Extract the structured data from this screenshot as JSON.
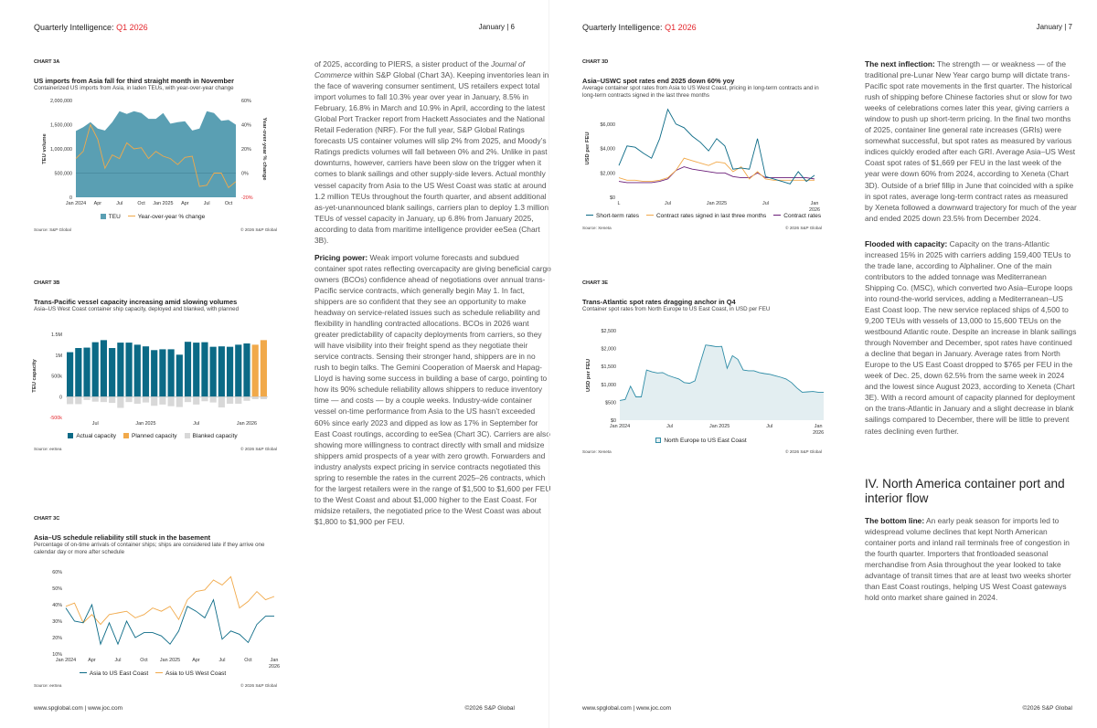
{
  "header": {
    "publication": "Quarterly Intelligence:",
    "issue": "Q1 2026",
    "left_page": "January  |  6",
    "right_page": "January  |  7"
  },
  "footer": {
    "links": "www.spglobal.com  |  www.joc.com",
    "copyright": "©2026 S&P Global"
  },
  "left_text": {
    "p1_a": "of 2025, according to PIERS, a sister product of the ",
    "p1_ital": "Journal of Commerce",
    "p1_b": " within S&P Global (Chart 3A). Keeping inventories lean in the face of wavering consumer sentiment, US retailers expect total import volumes to fall 10.3% year over year in January, 8.5% in February, 16.8% in March and 10.9% in April, according to the latest Global Port Tracker report from Hackett Associates and the National Retail Federation (NRF). For the full year, S&P Global Ratings forecasts US container volumes will slip 2% from 2025, and Moody’s Ratings predicts volumes will fall between 0% and 2%. Unlike in past downturns, however, carriers have been slow on the trigger when it comes to blank sailings and other supply-side levers. Actual monthly vessel capacity from Asia to the US West Coast was static at around 1.2 million TEUs throughout the fourth quarter, and absent additional as-yet-unannounced blank sailings, carriers plan to deploy 1.3 million TEUs of vessel capacity in January, up 6.8% from January 2025, according to data from maritime intelligence provider eeSea (Chart 3B).",
    "p2_lead": "Pricing power:",
    "p2": " Weak import volume forecasts and subdued container spot rates reflecting overcapacity are giving beneficial cargo owners (BCOs) confidence ahead of negotiations over annual trans-Pacific service contracts, which generally begin May 1. In fact, shippers are so confident that they see an opportunity to make headway on service-related issues such as schedule reliability and flexibility in handling contracted allocations. BCOs in 2026 want greater predictability of capacity deployments from carriers, so they will have visibility into their freight spend as they negotiate their service contracts. Sensing their stronger hand, shippers are in no rush to begin talks. The Gemini Cooperation of Maersk and Hapag-Lloyd is having some success in building a base of cargo, pointing to how its 90% schedule reliability allows shippers to reduce inventory time — and costs — by a couple weeks. Industry-wide container vessel on-time performance from Asia to the US hasn’t exceeded 60% since early 2023 and dipped as low as 17% in September for East Coast routings, according to eeSea (Chart 3C). Carriers are also showing more willingness to contract directly with small and midsize shippers amid prospects of a year with zero growth. Forwarders and industry analysts expect pricing in service contracts negotiated this spring to resemble the rates in the current 2025–26 contracts, which for the largest retailers were in the range of $1,500 to $1,600 per FEU to the West Coast and about $1,000 higher to the East Coast. For midsize retailers, the negotiated price to the West Coast was about $1,800 to $1,900 per FEU."
  },
  "right_text": {
    "p1_lead": "The next inflection:",
    "p1": " The strength — or weakness — of the traditional pre-Lunar New Year cargo bump will dictate trans-Pacific spot rate movements in the first quarter. The historical rush of shipping before Chinese factories shut or slow for two weeks of celebrations comes later this year, giving carriers a window to push up short-term pricing. In the final two months of 2025, container line general rate increases (GRIs) were somewhat successful, but spot rates as measured by various indices quickly eroded after each GRI. Average Asia–US West Coast spot rates of $1,669 per FEU in the last week of the year were down 60% from 2024, according to Xeneta (Chart 3D). Outside of a brief fillip in June that coincided with a spike in spot rates, average long-term contract rates as measured by Xeneta followed a downward trajectory for much of the year and ended 2025 down 23.5% from December 2024.",
    "p2_lead": "Flooded with capacity:",
    "p2": " Capacity on the trans-Atlantic increased 15% in 2025 with carriers adding 159,400 TEUs to the trade lane, according to Alphaliner. One of the main contributors to the added tonnage was Mediterranean Shipping Co. (MSC), which converted two Asia–Europe loops into round-the-world services, adding a Mediterranean–US East Coast loop. The new service replaced ships of 4,500 to 9,200 TEUs with vessels of 13,000 to 15,600 TEUs on the westbound Atlantic route. Despite an increase in blank sailings through November and December, spot rates have continued a decline that began in January. Average rates from North Europe to the US East Coast dropped to $765 per FEU in the week of Dec. 25, down 62.5% from the same week in 2024 and the lowest since August 2023, according to Xeneta (Chart 3E). With a record amount of capacity planned for deployment on the trans-Atlantic in January and a slight decrease in blank sailings compared to December, there will be little to prevent rates declining even further.",
    "heading": "IV. North America container port and interior flow",
    "p3_lead": "The bottom line:",
    "p3": " An early peak season for imports led to widespread volume declines that kept North American container ports and inland rail terminals free of congestion in the fourth quarter. Importers that frontloaded seasonal merchandise from Asia throughout the year looked to take advantage of transit times that are at least two weeks shorter than East Coast routings, helping US West Coast gateways hold onto market share gained in 2024."
  },
  "colors": {
    "teal": "#0b6a86",
    "teal_area": "#5a9fb3",
    "orange": "#f1a94a",
    "gray": "#d8d8d8",
    "purple": "#6a1d78",
    "light_area": "#e3eef1",
    "red": "#e3262c"
  },
  "chart_data": [
    {
      "id": "3A",
      "type": "area",
      "label": "CHART 3A",
      "title": "US imports from Asia fall for third straight month in November",
      "subtitle": "Containerized US imports from Asia, in laden TEUs, with year-over-year change",
      "ylabel": "TEU volume",
      "y2label": "Year-over-year % change",
      "ylim": [
        0,
        2000000
      ],
      "y2lim": [
        -20,
        60
      ],
      "yticks": [
        "0",
        "500,000",
        "1,000,000",
        "1,500,000",
        "2,000,000"
      ],
      "y2ticks": [
        "-20%",
        "0%",
        "20%",
        "40%",
        "60%"
      ],
      "xticks": [
        "Jan 2024",
        "Apr",
        "Jul",
        "Oct",
        "Jan 2025",
        "Apr",
        "Jul",
        "Oct"
      ],
      "series": [
        {
          "name": "TEU",
          "values": [
            1370000,
            1450000,
            1550000,
            1420000,
            1380000,
            1550000,
            1780000,
            1720000,
            1780000,
            1740000,
            1620000,
            1620000,
            1740000,
            1520000,
            1550000,
            1570000,
            1380000,
            1420000,
            1780000,
            1740000,
            1580000,
            1600000,
            1500000
          ]
        },
        {
          "name": "Year-over-year % change",
          "axis": "right",
          "values": [
            12,
            18,
            40,
            28,
            4,
            15,
            12,
            25,
            20,
            21,
            12,
            18,
            14,
            12,
            7,
            13,
            14,
            -11,
            -10,
            0,
            0,
            -12,
            -7
          ]
        }
      ],
      "source": "Source: S&P Global",
      "copyright": "© 2026 S&P Global"
    },
    {
      "id": "3B",
      "type": "bar",
      "label": "CHART 3B",
      "title": "Trans-Pacific vessel capacity increasing amid slowing volumes",
      "subtitle": "Asia–US West Coast container ship capacity, deployed and blanked, with planned",
      "ylabel": "TEU capacity",
      "ylim": [
        -500000,
        1500000
      ],
      "yticks": [
        "-500k",
        "0",
        "500k",
        "1M",
        "1.5M"
      ],
      "xticks": [
        "Jul",
        "Jan 2025",
        "Jul",
        "Jan 2026"
      ],
      "series": [
        {
          "name": "Actual capacity",
          "values": [
            1070000,
            1170000,
            1180000,
            1310000,
            1360000,
            1170000,
            1300000,
            1300000,
            1250000,
            1210000,
            1120000,
            1140000,
            1140000,
            1010000,
            1320000,
            1300000,
            1310000,
            1200000,
            1210000,
            1200000,
            1250000,
            1280000,
            null,
            null
          ]
        },
        {
          "name": "Planned capacity",
          "values": [
            null,
            null,
            null,
            null,
            null,
            null,
            null,
            null,
            null,
            null,
            null,
            null,
            null,
            null,
            null,
            null,
            null,
            null,
            null,
            null,
            null,
            null,
            1250000,
            1360000
          ]
        },
        {
          "name": "Blanked capacity",
          "values": [
            -180000,
            -180000,
            -80000,
            -120000,
            -130000,
            -150000,
            -270000,
            -130000,
            -170000,
            -140000,
            -220000,
            -190000,
            -230000,
            -250000,
            -130000,
            -190000,
            -110000,
            -140000,
            -260000,
            -170000,
            -170000,
            -100000,
            -60000,
            -60000
          ]
        }
      ],
      "source": "Source: eeSea",
      "copyright": "© 2026 S&P Global"
    },
    {
      "id": "3C",
      "type": "line",
      "label": "CHART 3C",
      "title": "Asia–US schedule reliability still stuck in the basement",
      "subtitle": "Percentage of on-time arrivals of container ships; ships are considered late if they arrive one calendar day or more after schedule",
      "ylim": [
        10,
        60
      ],
      "yticks": [
        "10%",
        "20%",
        "30%",
        "40%",
        "50%",
        "60%"
      ],
      "xticks": [
        "Jan 2024",
        "Apr",
        "Jul",
        "Oct",
        "Jan 2025",
        "Apr",
        "Jul",
        "Oct",
        "Jan 2026"
      ],
      "series": [
        {
          "name": "Asia to US East Coast",
          "values": [
            38,
            30,
            29,
            40,
            16,
            29,
            16,
            30,
            20,
            23,
            23,
            21,
            16,
            24,
            39,
            36,
            32,
            43,
            19,
            24,
            22,
            17,
            28,
            33,
            33
          ]
        },
        {
          "name": "Asia to US West Coast",
          "values": [
            39,
            41,
            29,
            34,
            28,
            34,
            35,
            36,
            32,
            34,
            38,
            36,
            39,
            31,
            43,
            48,
            49,
            55,
            52,
            57,
            38,
            42,
            48,
            43,
            45
          ]
        }
      ],
      "source": "Source: eeSea",
      "copyright": "© 2026 S&P Global"
    },
    {
      "id": "3D",
      "type": "line",
      "label": "CHART 3D",
      "title": "Asia–USWC spot rates end 2025 down 60% yoy",
      "subtitle": "Average container spot rates from Asia to US West Coast, pricing in long-term contracts and in long-term contracts signed in the last three months",
      "ylabel": "USD per FEU",
      "ylim": [
        0,
        8000
      ],
      "yticks": [
        "$0",
        "$2,000",
        "$4,000",
        "$6,000"
      ],
      "xticks": [
        "L",
        "Jul",
        "Jan 2025",
        "Jul",
        "Jan 2026"
      ],
      "series": [
        {
          "name": "Short-term rates",
          "values": [
            2600,
            4200,
            4100,
            3600,
            3200,
            4800,
            7200,
            6000,
            5700,
            5000,
            4500,
            3800,
            4800,
            4200,
            2300,
            2400,
            2300,
            4800,
            1700,
            1500,
            1300,
            1100,
            2100,
            1300,
            1800
          ]
        },
        {
          "name": "Contract rates signed in last three months",
          "values": [
            1600,
            1400,
            1400,
            1300,
            1300,
            1400,
            1600,
            2200,
            3200,
            3000,
            2800,
            2600,
            2900,
            2800,
            2100,
            2500,
            1500,
            2100,
            1500,
            1400,
            1400,
            1400,
            1400,
            1400,
            1400
          ]
        },
        {
          "name": "Contract rates",
          "values": [
            1300,
            1200,
            1200,
            1200,
            1200,
            1300,
            1500,
            2200,
            2500,
            2300,
            2200,
            2100,
            2000,
            2000,
            1700,
            1600,
            1600,
            2000,
            1600,
            1600,
            1600,
            1600,
            1600,
            1600,
            1500
          ]
        }
      ],
      "source": "Source: Xeneta",
      "copyright": "© 2026 S&P Global"
    },
    {
      "id": "3E",
      "type": "area",
      "label": "CHART 3E",
      "title": "Trans-Atlantic spot rates dragging anchor in Q4",
      "subtitle": "Container spot rates from North Europe to US East Coast, in USD per FEU",
      "ylabel": "USD per FEU",
      "ylim": [
        0,
        2500
      ],
      "yticks": [
        "$0",
        "$500",
        "$1,000",
        "$1,500",
        "$2,000",
        "$2,500"
      ],
      "xticks": [
        "Jan 2024",
        "Jul",
        "Jan 2025",
        "Jul",
        "Jan 2026"
      ],
      "series": [
        {
          "name": "North Europe to US East Coast",
          "values": [
            550,
            580,
            950,
            650,
            650,
            1400,
            1350,
            1320,
            1330,
            1250,
            1200,
            1150,
            1050,
            1030,
            1100,
            1600,
            2100,
            2080,
            2050,
            2060,
            1450,
            1800,
            1700,
            1400,
            1380,
            1380,
            1330,
            1300,
            1280,
            1240,
            1200,
            1150,
            1050,
            900,
            780,
            790,
            800,
            780,
            780
          ]
        }
      ],
      "source": "Source: Xeneta",
      "copyright": "© 2026 S&P Global"
    }
  ]
}
